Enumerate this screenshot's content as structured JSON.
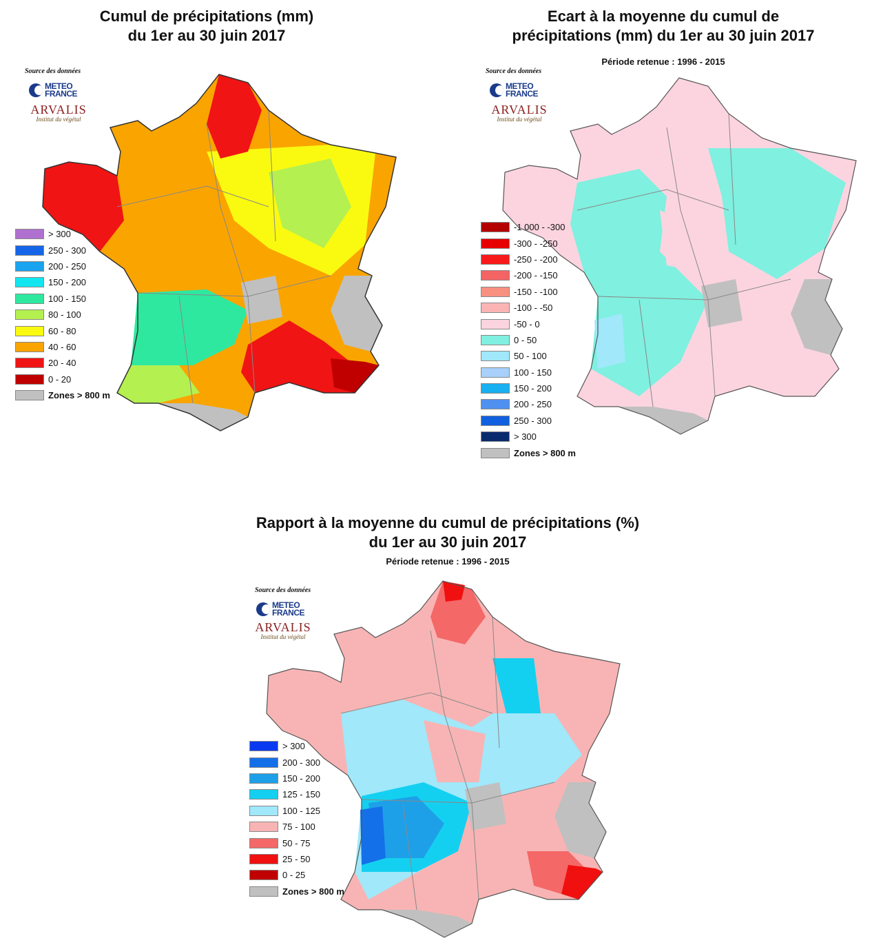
{
  "source_label": "Source des données",
  "logos": {
    "meteo_france": {
      "line1": "METEO",
      "line2": "FRANCE"
    },
    "arvalis": {
      "name": "ARVALIS",
      "tagline": "Institut du végétal"
    }
  },
  "maps": {
    "cumul": {
      "title_line1": "Cumul de précipitations (mm)",
      "title_line2": "du 1er au 30 juin 2017",
      "subtitle": "",
      "legend": [
        {
          "label": "> 300",
          "color": "#b070d0"
        },
        {
          "label": "250 - 300",
          "color": "#1565e8"
        },
        {
          "label": "200 - 250",
          "color": "#1aa3ef"
        },
        {
          "label": "150 - 200",
          "color": "#14e6f0"
        },
        {
          "label": "100 - 150",
          "color": "#2ee8a0"
        },
        {
          "label": "80 - 100",
          "color": "#b4f050"
        },
        {
          "label": "60 - 80",
          "color": "#fafa10"
        },
        {
          "label": "40 - 60",
          "color": "#faa400"
        },
        {
          "label": "20 - 40",
          "color": "#f01414"
        },
        {
          "label": "0 - 20",
          "color": "#c00000"
        },
        {
          "label": "Zones > 800 m",
          "color": "#c0c0c0"
        }
      ]
    },
    "ecart": {
      "title_line1": "Ecart à la moyenne du cumul de",
      "title_line2": "précipitations (mm) du 1er au 30 juin 2017",
      "subtitle": "Période retenue : 1996 - 2015",
      "legend": [
        {
          "label": "-1 000 - -300",
          "color": "#b40000"
        },
        {
          "label": "-300 - -250",
          "color": "#e60000"
        },
        {
          "label": "-250 - -200",
          "color": "#f81a1a"
        },
        {
          "label": "-200 - -150",
          "color": "#f46464"
        },
        {
          "label": "-150 - -100",
          "color": "#f89080"
        },
        {
          "label": "-100 - -50",
          "color": "#fab4b4"
        },
        {
          "label": "-50 - 0",
          "color": "#fcd4e0"
        },
        {
          "label": "0 - 50",
          "color": "#80f0e0"
        },
        {
          "label": "50 - 100",
          "color": "#a0e8fa"
        },
        {
          "label": "100 - 150",
          "color": "#a8d0fa"
        },
        {
          "label": "150 - 200",
          "color": "#18b0f0"
        },
        {
          "label": "200 - 250",
          "color": "#5090f0"
        },
        {
          "label": "250 - 300",
          "color": "#1060e0"
        },
        {
          "label": "> 300",
          "color": "#0a2a6e"
        },
        {
          "label": "Zones > 800 m",
          "color": "#c0c0c0"
        }
      ]
    },
    "rapport": {
      "title_line1": "Rapport à la moyenne du cumul de précipitations (%)",
      "title_line2": "du 1er au 30 juin 2017",
      "subtitle": "Période retenue :  1996 - 2015",
      "legend": [
        {
          "label": "> 300",
          "color": "#0a3af0"
        },
        {
          "label": "200 - 300",
          "color": "#1470e8"
        },
        {
          "label": "150 - 200",
          "color": "#1ea0e8"
        },
        {
          "label": "125 - 150",
          "color": "#14d0f0"
        },
        {
          "label": "100 - 125",
          "color": "#a0e8fa"
        },
        {
          "label": "75 - 100",
          "color": "#f8b4b4"
        },
        {
          "label": "50 - 75",
          "color": "#f46868"
        },
        {
          "label": "25 - 50",
          "color": "#f01010"
        },
        {
          "label": "0 - 25",
          "color": "#c00000"
        },
        {
          "label": "Zones > 800 m",
          "color": "#c0c0c0"
        }
      ]
    }
  }
}
